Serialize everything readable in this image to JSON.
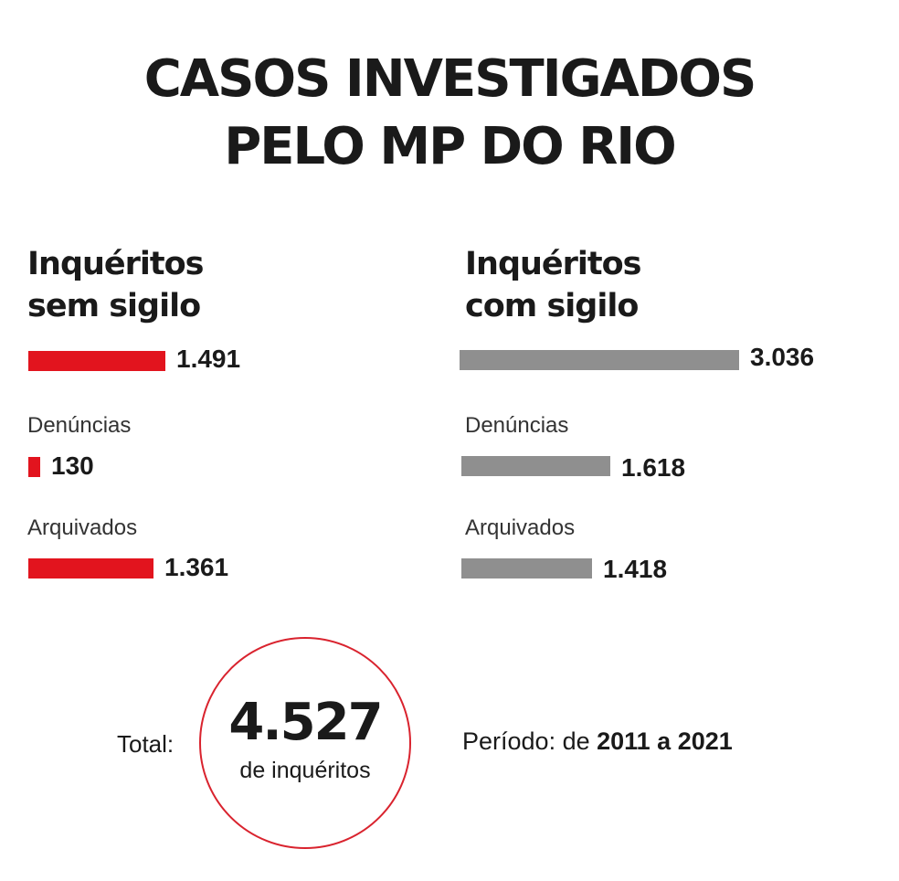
{
  "title_lines": [
    "CASOS INVESTIGADOS",
    "PELO MP DO RIO"
  ],
  "colors": {
    "sem_sigilo": "#e2141e",
    "com_sigilo": "#8f8f8f",
    "circle": "#d9232e"
  },
  "chart_data": {
    "type": "bar",
    "orientation": "horizontal",
    "groups": [
      {
        "title_lines": [
          "Inquéritos",
          "sem sigilo"
        ],
        "color": "#e2141e",
        "rows": [
          {
            "label": "",
            "value": 1491,
            "display": "1.491"
          },
          {
            "label": "Denúncias",
            "value": 130,
            "display": "130"
          },
          {
            "label": "Arquivados",
            "value": 1361,
            "display": "1.361"
          }
        ]
      },
      {
        "title_lines": [
          "Inquéritos",
          "com sigilo"
        ],
        "color": "#8f8f8f",
        "rows": [
          {
            "label": "",
            "value": 3036,
            "display": "3.036"
          },
          {
            "label": "Denúncias",
            "value": 1618,
            "display": "1.618"
          },
          {
            "label": "Arquivados",
            "value": 1418,
            "display": "1.418"
          }
        ]
      }
    ]
  },
  "total": {
    "label": "Total:",
    "value": "4.527",
    "unit": "de inquéritos"
  },
  "period": {
    "prefix": "Período: de ",
    "range": "2011 a 2021"
  }
}
